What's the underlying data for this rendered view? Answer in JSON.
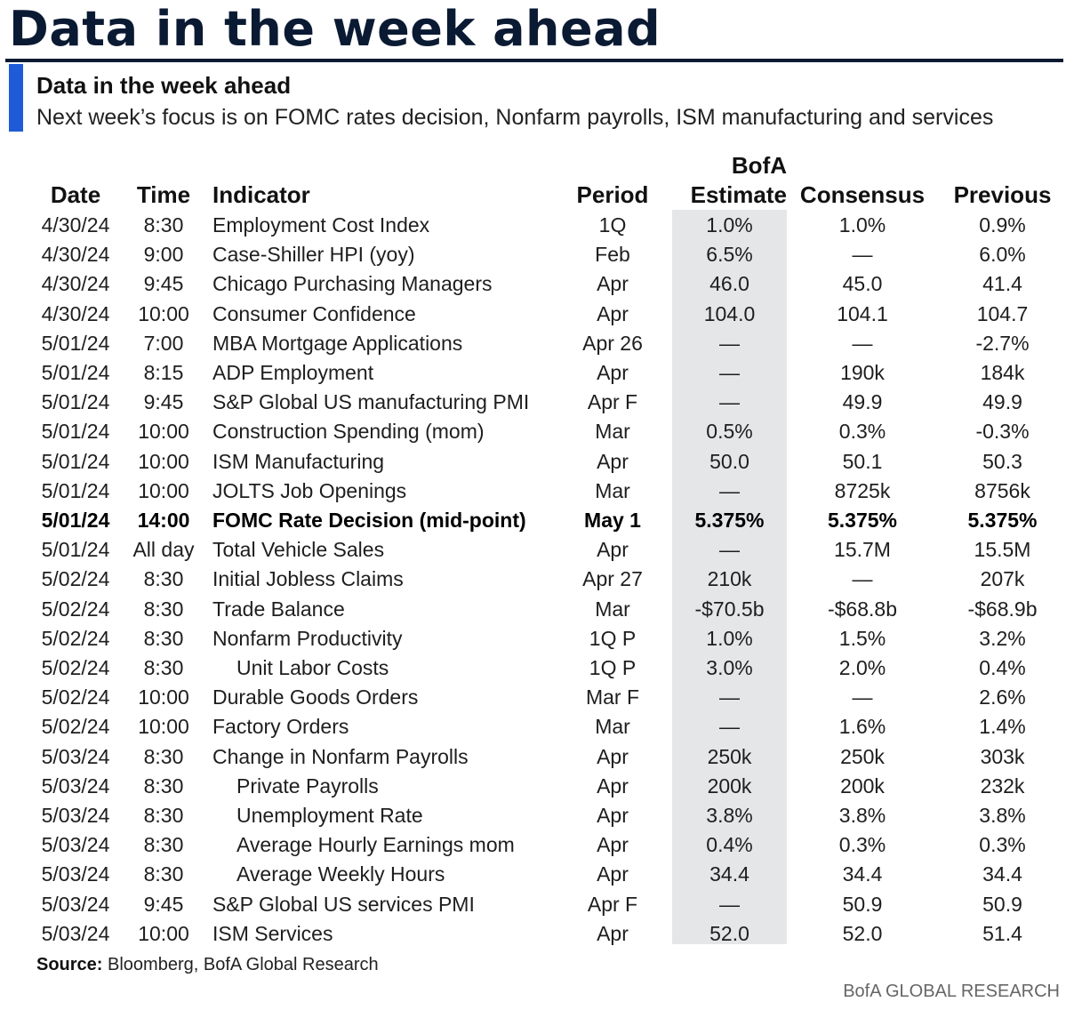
{
  "page": {
    "heading": "Data in the week ahead",
    "subtitle": "Data in the week ahead",
    "description": "Next week’s focus is on FOMC rates decision, Nonfarm payrolls, ISM manufacturing and services"
  },
  "colors": {
    "accent_bar": "#1f5bd6",
    "heading": "#0b1a33",
    "estimate_shade": "#e5e6e8"
  },
  "table": {
    "headers": {
      "date": "Date",
      "time": "Time",
      "indicator": "Indicator",
      "period": "Period",
      "estimate_line1": "BofA",
      "estimate_line2": "Estimate",
      "consensus": "Consensus",
      "previous": "Previous"
    },
    "rows": [
      {
        "date": "4/30/24",
        "time": "8:30",
        "indicator": "Employment Cost Index",
        "period": "1Q",
        "estimate": "1.0%",
        "consensus": "1.0%",
        "previous": "0.9%"
      },
      {
        "date": "4/30/24",
        "time": "9:00",
        "indicator": "Case-Shiller HPI (yoy)",
        "period": "Feb",
        "estimate": "6.5%",
        "consensus": "—",
        "previous": "6.0%"
      },
      {
        "date": "4/30/24",
        "time": "9:45",
        "indicator": "Chicago Purchasing Managers",
        "period": "Apr",
        "estimate": "46.0",
        "consensus": "45.0",
        "previous": "41.4"
      },
      {
        "date": "4/30/24",
        "time": "10:00",
        "indicator": "Consumer Confidence",
        "period": "Apr",
        "estimate": "104.0",
        "consensus": "104.1",
        "previous": "104.7"
      },
      {
        "date": "5/01/24",
        "time": "7:00",
        "indicator": "MBA Mortgage Applications",
        "period": "Apr 26",
        "estimate": "—",
        "consensus": "—",
        "previous": "-2.7%"
      },
      {
        "date": "5/01/24",
        "time": "8:15",
        "indicator": "ADP Employment",
        "period": "Apr",
        "estimate": "—",
        "consensus": "190k",
        "previous": "184k"
      },
      {
        "date": "5/01/24",
        "time": "9:45",
        "indicator": "S&P Global US manufacturing PMI",
        "period": "Apr F",
        "estimate": "—",
        "consensus": "49.9",
        "previous": "49.9"
      },
      {
        "date": "5/01/24",
        "time": "10:00",
        "indicator": "Construction Spending (mom)",
        "period": "Mar",
        "estimate": "0.5%",
        "consensus": "0.3%",
        "previous": "-0.3%"
      },
      {
        "date": "5/01/24",
        "time": "10:00",
        "indicator": "ISM Manufacturing",
        "period": "Apr",
        "estimate": "50.0",
        "consensus": "50.1",
        "previous": "50.3"
      },
      {
        "date": "5/01/24",
        "time": "10:00",
        "indicator": "JOLTS Job Openings",
        "period": "Mar",
        "estimate": "—",
        "consensus": "8725k",
        "previous": "8756k"
      },
      {
        "date": "5/01/24",
        "time": "14:00",
        "indicator": "FOMC Rate Decision (mid-point)",
        "period": "May 1",
        "estimate": "5.375%",
        "consensus": "5.375%",
        "previous": "5.375%",
        "bold": true
      },
      {
        "date": "5/01/24",
        "time": "All day",
        "indicator": "Total Vehicle Sales",
        "period": "Apr",
        "estimate": "—",
        "consensus": "15.7M",
        "previous": "15.5M"
      },
      {
        "date": "5/02/24",
        "time": "8:30",
        "indicator": "Initial Jobless Claims",
        "period": "Apr 27",
        "estimate": "210k",
        "consensus": "—",
        "previous": "207k"
      },
      {
        "date": "5/02/24",
        "time": "8:30",
        "indicator": "Trade Balance",
        "period": "Mar",
        "estimate": "-$70.5b",
        "consensus": "-$68.8b",
        "previous": "-$68.9b"
      },
      {
        "date": "5/02/24",
        "time": "8:30",
        "indicator": "Nonfarm Productivity",
        "period": "1Q P",
        "estimate": "1.0%",
        "consensus": "1.5%",
        "previous": "3.2%"
      },
      {
        "date": "5/02/24",
        "time": "8:30",
        "indicator": "Unit Labor Costs",
        "period": "1Q P",
        "estimate": "3.0%",
        "consensus": "2.0%",
        "previous": "0.4%",
        "indent": true
      },
      {
        "date": "5/02/24",
        "time": "10:00",
        "indicator": "Durable Goods Orders",
        "period": "Mar F",
        "estimate": "—",
        "consensus": "—",
        "previous": "2.6%"
      },
      {
        "date": "5/02/24",
        "time": "10:00",
        "indicator": "Factory Orders",
        "period": "Mar",
        "estimate": "—",
        "consensus": "1.6%",
        "previous": "1.4%"
      },
      {
        "date": "5/03/24",
        "time": "8:30",
        "indicator": "Change in Nonfarm Payrolls",
        "period": "Apr",
        "estimate": "250k",
        "consensus": "250k",
        "previous": "303k"
      },
      {
        "date": "5/03/24",
        "time": "8:30",
        "indicator": "Private Payrolls",
        "period": "Apr",
        "estimate": "200k",
        "consensus": "200k",
        "previous": "232k",
        "indent": true
      },
      {
        "date": "5/03/24",
        "time": "8:30",
        "indicator": "Unemployment Rate",
        "period": "Apr",
        "estimate": "3.8%",
        "consensus": "3.8%",
        "previous": "3.8%",
        "indent": true
      },
      {
        "date": "5/03/24",
        "time": "8:30",
        "indicator": "Average Hourly Earnings mom",
        "period": "Apr",
        "estimate": "0.4%",
        "consensus": "0.3%",
        "previous": "0.3%",
        "indent": true
      },
      {
        "date": "5/03/24",
        "time": "8:30",
        "indicator": "Average Weekly Hours",
        "period": "Apr",
        "estimate": "34.4",
        "consensus": "34.4",
        "previous": "34.4",
        "indent": true
      },
      {
        "date": "5/03/24",
        "time": "9:45",
        "indicator": "S&P Global US services PMI",
        "period": "Apr F",
        "estimate": "—",
        "consensus": "50.9",
        "previous": "50.9"
      },
      {
        "date": "5/03/24",
        "time": "10:00",
        "indicator": "ISM Services",
        "period": "Apr",
        "estimate": "52.0",
        "consensus": "52.0",
        "previous": "51.4"
      }
    ]
  },
  "footer": {
    "source_label": "Source:",
    "source_text": " Bloomberg, BofA Global Research",
    "brand": "BofA GLOBAL RESEARCH"
  }
}
